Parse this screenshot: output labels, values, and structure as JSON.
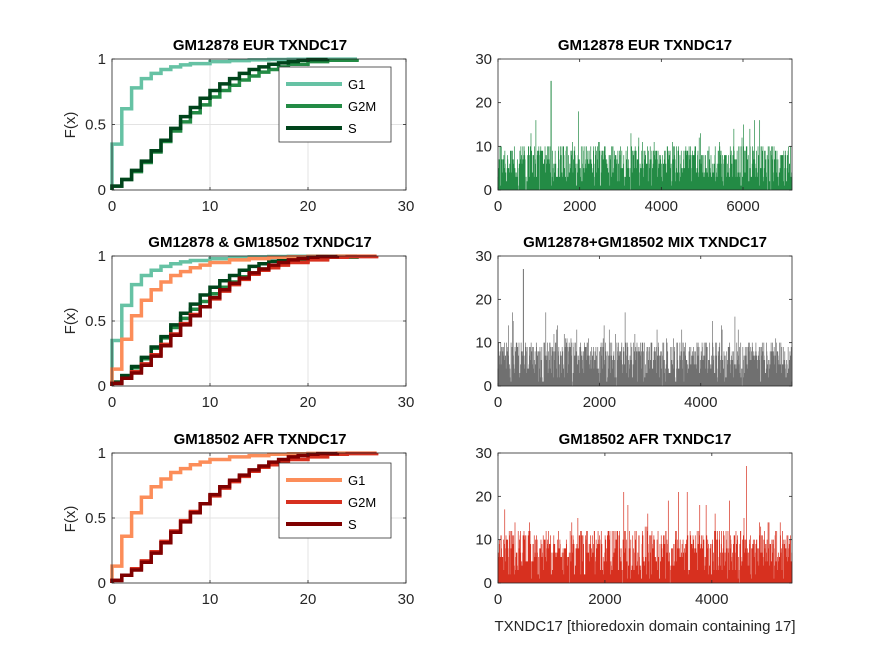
{
  "figure": {
    "xlabel_bottom_right": "TXNDC17 [thioredoxin domain containing 17]"
  },
  "chart_data": [
    {
      "type": "line",
      "subtype": "ecdf",
      "title": "GM12878 EUR TXNDC17",
      "ylabel": "F(x)",
      "xlim": [
        0,
        30
      ],
      "ylim": [
        0,
        1
      ],
      "xticks": [
        0,
        10,
        20,
        30
      ],
      "yticks": [
        0,
        0.5,
        1
      ],
      "grid": true,
      "legend": "top-right",
      "series": [
        {
          "name": "G1",
          "color": "#66c2a4",
          "x": [
            0,
            1,
            2,
            3,
            4,
            5,
            6,
            7,
            8,
            10,
            12,
            14,
            16,
            18,
            20,
            25
          ],
          "y": [
            0.35,
            0.62,
            0.78,
            0.85,
            0.89,
            0.92,
            0.94,
            0.955,
            0.965,
            0.98,
            0.988,
            0.993,
            0.996,
            0.998,
            0.999,
            1.0
          ]
        },
        {
          "name": "G2M",
          "color": "#238b45",
          "x": [
            0,
            1,
            2,
            3,
            4,
            5,
            6,
            7,
            8,
            9,
            10,
            11,
            12,
            13,
            14,
            15,
            16,
            17,
            18,
            20,
            22,
            25
          ],
          "y": [
            0.03,
            0.08,
            0.14,
            0.21,
            0.29,
            0.37,
            0.45,
            0.52,
            0.59,
            0.65,
            0.71,
            0.76,
            0.8,
            0.84,
            0.87,
            0.9,
            0.92,
            0.94,
            0.96,
            0.98,
            0.99,
            1.0
          ]
        },
        {
          "name": "S",
          "color": "#00441b",
          "x": [
            0,
            1,
            2,
            3,
            4,
            5,
            6,
            7,
            8,
            9,
            10,
            11,
            12,
            13,
            14,
            15,
            16,
            17,
            18,
            19,
            20,
            22
          ],
          "y": [
            0.03,
            0.08,
            0.15,
            0.22,
            0.3,
            0.38,
            0.47,
            0.56,
            0.63,
            0.7,
            0.76,
            0.81,
            0.85,
            0.89,
            0.92,
            0.94,
            0.96,
            0.97,
            0.98,
            0.99,
            0.995,
            1.0
          ]
        }
      ]
    },
    {
      "type": "bar",
      "title": "GM12878 EUR TXNDC17",
      "xlim": [
        0,
        7200
      ],
      "ylim": [
        0,
        30
      ],
      "xticks": [
        0,
        2000,
        4000,
        6000
      ],
      "yticks": [
        0,
        10,
        20,
        30
      ],
      "color": "#238b45",
      "n": 7200,
      "typical_max": 10,
      "peak": 25,
      "peak_at": 1300
    },
    {
      "type": "line",
      "subtype": "ecdf",
      "title": "GM12878 & GM18502 TXNDC17",
      "ylabel": "F(x)",
      "xlim": [
        0,
        30
      ],
      "ylim": [
        0,
        1
      ],
      "xticks": [
        0,
        10,
        20,
        30
      ],
      "yticks": [
        0,
        0.5,
        1
      ],
      "grid": true,
      "series": [
        {
          "color": "#66c2a4",
          "x": [
            0,
            1,
            2,
            3,
            4,
            5,
            6,
            7,
            8,
            10,
            12,
            14,
            16,
            18,
            20,
            25
          ],
          "y": [
            0.35,
            0.62,
            0.78,
            0.85,
            0.89,
            0.92,
            0.94,
            0.955,
            0.965,
            0.98,
            0.988,
            0.993,
            0.996,
            0.998,
            0.999,
            1.0
          ]
        },
        {
          "color": "#238b45",
          "x": [
            0,
            1,
            2,
            3,
            4,
            5,
            6,
            7,
            8,
            9,
            10,
            11,
            12,
            13,
            14,
            15,
            16,
            17,
            18,
            20,
            22,
            25
          ],
          "y": [
            0.03,
            0.08,
            0.14,
            0.21,
            0.29,
            0.37,
            0.45,
            0.52,
            0.59,
            0.65,
            0.71,
            0.76,
            0.8,
            0.84,
            0.87,
            0.9,
            0.92,
            0.94,
            0.96,
            0.98,
            0.99,
            1.0
          ]
        },
        {
          "color": "#00441b",
          "x": [
            0,
            1,
            2,
            3,
            4,
            5,
            6,
            7,
            8,
            9,
            10,
            11,
            12,
            13,
            14,
            15,
            16,
            17,
            18,
            19,
            20,
            22
          ],
          "y": [
            0.03,
            0.08,
            0.15,
            0.22,
            0.3,
            0.38,
            0.47,
            0.56,
            0.63,
            0.7,
            0.76,
            0.81,
            0.85,
            0.89,
            0.92,
            0.94,
            0.96,
            0.97,
            0.98,
            0.99,
            0.995,
            1.0
          ]
        },
        {
          "color": "#fc8d59",
          "x": [
            0,
            1,
            2,
            3,
            4,
            5,
            6,
            7,
            8,
            9,
            10,
            12,
            14,
            16,
            18,
            20,
            23,
            27
          ],
          "y": [
            0.13,
            0.36,
            0.54,
            0.66,
            0.74,
            0.8,
            0.85,
            0.88,
            0.91,
            0.93,
            0.95,
            0.97,
            0.98,
            0.99,
            0.994,
            0.997,
            0.999,
            1.0
          ]
        },
        {
          "color": "#d7301f",
          "x": [
            0,
            1,
            2,
            3,
            4,
            5,
            6,
            7,
            8,
            9,
            10,
            11,
            12,
            13,
            14,
            15,
            16,
            17,
            18,
            20,
            22,
            24,
            27
          ],
          "y": [
            0.02,
            0.06,
            0.11,
            0.17,
            0.24,
            0.32,
            0.4,
            0.48,
            0.55,
            0.61,
            0.67,
            0.73,
            0.78,
            0.82,
            0.86,
            0.89,
            0.91,
            0.93,
            0.95,
            0.97,
            0.99,
            0.995,
            1.0
          ]
        },
        {
          "color": "#7f0000",
          "x": [
            0,
            1,
            2,
            3,
            4,
            5,
            6,
            7,
            8,
            9,
            10,
            11,
            12,
            13,
            14,
            15,
            16,
            17,
            18,
            19,
            20,
            21,
            23
          ],
          "y": [
            0.02,
            0.06,
            0.1,
            0.16,
            0.23,
            0.31,
            0.39,
            0.47,
            0.54,
            0.61,
            0.68,
            0.74,
            0.79,
            0.83,
            0.87,
            0.9,
            0.93,
            0.95,
            0.97,
            0.98,
            0.99,
            0.995,
            1.0
          ]
        }
      ]
    },
    {
      "type": "bar",
      "title": "GM12878+GM18502 MIX TXNDC17",
      "xlim": [
        0,
        5800
      ],
      "ylim": [
        0,
        30
      ],
      "xticks": [
        0,
        2000,
        4000
      ],
      "yticks": [
        0,
        10,
        20,
        30
      ],
      "color": "#707070",
      "n": 5800,
      "typical_max": 10,
      "peak": 27,
      "peak_at": 500
    },
    {
      "type": "line",
      "subtype": "ecdf",
      "title": "GM18502 AFR TXNDC17",
      "ylabel": "F(x)",
      "xlim": [
        0,
        30
      ],
      "ylim": [
        0,
        1
      ],
      "xticks": [
        0,
        10,
        20,
        30
      ],
      "yticks": [
        0,
        0.5,
        1
      ],
      "grid": true,
      "legend": "top-right",
      "series": [
        {
          "name": "G1",
          "color": "#fc8d59",
          "x": [
            0,
            1,
            2,
            3,
            4,
            5,
            6,
            7,
            8,
            9,
            10,
            12,
            14,
            16,
            18,
            20,
            23,
            27
          ],
          "y": [
            0.13,
            0.36,
            0.54,
            0.66,
            0.74,
            0.8,
            0.85,
            0.88,
            0.91,
            0.93,
            0.95,
            0.97,
            0.98,
            0.99,
            0.994,
            0.997,
            0.999,
            1.0
          ]
        },
        {
          "name": "G2M",
          "color": "#d7301f",
          "x": [
            0,
            1,
            2,
            3,
            4,
            5,
            6,
            7,
            8,
            9,
            10,
            11,
            12,
            13,
            14,
            15,
            16,
            17,
            18,
            20,
            22,
            24,
            27
          ],
          "y": [
            0.02,
            0.06,
            0.11,
            0.17,
            0.24,
            0.32,
            0.4,
            0.48,
            0.55,
            0.61,
            0.67,
            0.73,
            0.78,
            0.82,
            0.86,
            0.89,
            0.91,
            0.93,
            0.95,
            0.97,
            0.99,
            0.995,
            1.0
          ]
        },
        {
          "name": "S",
          "color": "#7f0000",
          "x": [
            0,
            1,
            2,
            3,
            4,
            5,
            6,
            7,
            8,
            9,
            10,
            11,
            12,
            13,
            14,
            15,
            16,
            17,
            18,
            19,
            20,
            21,
            23
          ],
          "y": [
            0.02,
            0.06,
            0.1,
            0.16,
            0.23,
            0.31,
            0.39,
            0.47,
            0.54,
            0.61,
            0.68,
            0.74,
            0.79,
            0.83,
            0.87,
            0.9,
            0.93,
            0.95,
            0.97,
            0.98,
            0.99,
            0.995,
            1.0
          ]
        }
      ]
    },
    {
      "type": "bar",
      "title": "GM18502 AFR TXNDC17",
      "xlim": [
        0,
        5500
      ],
      "ylim": [
        0,
        30
      ],
      "xticks": [
        0,
        2000,
        4000
      ],
      "yticks": [
        0,
        10,
        20,
        30
      ],
      "color": "#d7301f",
      "n": 5500,
      "typical_max": 12,
      "peak": 27,
      "peak_at": 4650
    }
  ]
}
